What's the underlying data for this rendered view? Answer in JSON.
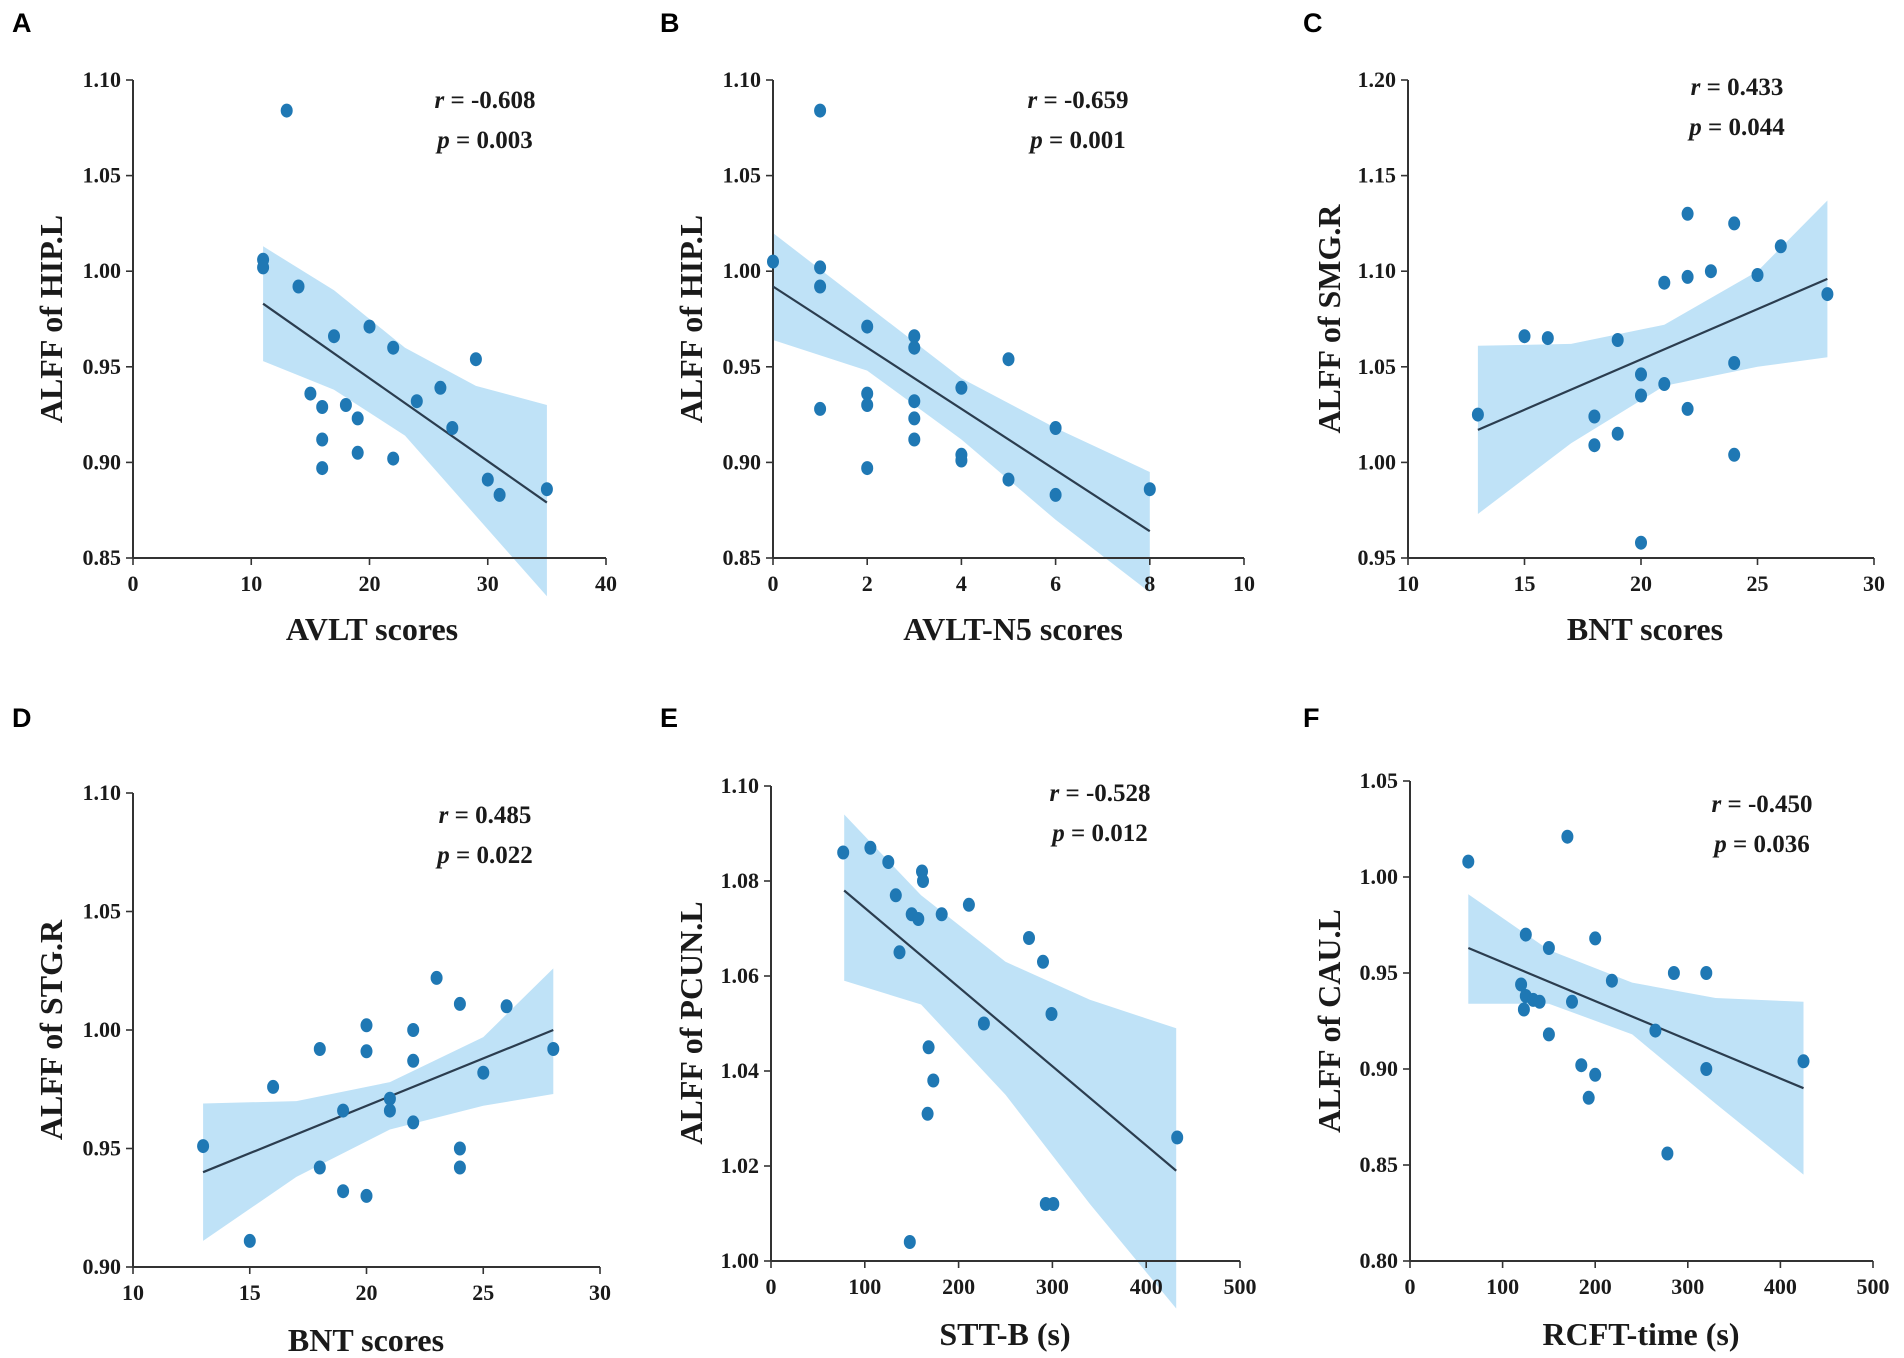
{
  "chart_data": [
    {
      "panel": "A",
      "type": "scatter",
      "xlabel": "AVLT scores",
      "ylabel": "ALFF of HIP.L",
      "xlim": [
        0,
        40
      ],
      "ylim": [
        0.85,
        1.1
      ],
      "xticks": [
        0,
        10,
        20,
        30,
        40
      ],
      "xtick_labels": [
        "0",
        "10",
        "20",
        "30",
        "40"
      ],
      "yticks": [
        0.85,
        0.9,
        0.95,
        1.0,
        1.05,
        1.1
      ],
      "ytick_labels": [
        "0.85",
        "0.90",
        "0.95",
        "1.00",
        "1.05",
        "1.10"
      ],
      "r_label": "r",
      "r_value": "= -0.608",
      "p_label": "p",
      "p_value": "= 0.003",
      "fit": {
        "x0": 11,
        "y0": 0.983,
        "x1": 35,
        "y1": 0.879
      },
      "ci_upper": [
        [
          11,
          1.013
        ],
        [
          17,
          0.99
        ],
        [
          23,
          0.96
        ],
        [
          29,
          0.94
        ],
        [
          35,
          0.93
        ]
      ],
      "ci_lower": [
        [
          35,
          0.83
        ],
        [
          29,
          0.872
        ],
        [
          23,
          0.914
        ],
        [
          17,
          0.938
        ],
        [
          11,
          0.953
        ]
      ],
      "points": [
        [
          13,
          1.084
        ],
        [
          11,
          1.006
        ],
        [
          11,
          1.002
        ],
        [
          14,
          0.992
        ],
        [
          17,
          0.966
        ],
        [
          20,
          0.971
        ],
        [
          22,
          0.96
        ],
        [
          15,
          0.936
        ],
        [
          16,
          0.929
        ],
        [
          18,
          0.93
        ],
        [
          19,
          0.923
        ],
        [
          16,
          0.912
        ],
        [
          16,
          0.897
        ],
        [
          19,
          0.905
        ],
        [
          22,
          0.902
        ],
        [
          24,
          0.932
        ],
        [
          26,
          0.939
        ],
        [
          27,
          0.918
        ],
        [
          29,
          0.954
        ],
        [
          30,
          0.891
        ],
        [
          31,
          0.883
        ],
        [
          35,
          0.886
        ]
      ]
    },
    {
      "panel": "B",
      "type": "scatter",
      "xlabel": "AVLT-N5 scores",
      "ylabel": "ALFF of HIP.L",
      "xlim": [
        0,
        10
      ],
      "ylim": [
        0.85,
        1.1
      ],
      "xticks": [
        0,
        2,
        4,
        6,
        8,
        10
      ],
      "xtick_labels": [
        "0",
        "2",
        "4",
        "6",
        "8",
        "10"
      ],
      "yticks": [
        0.85,
        0.9,
        0.95,
        1.0,
        1.05,
        1.1
      ],
      "ytick_labels": [
        "0.85",
        "0.90",
        "0.95",
        "1.00",
        "1.05",
        "1.10"
      ],
      "r_label": "r",
      "r_value": "= -0.659",
      "p_label": "p",
      "p_value": "= 0.001",
      "fit": {
        "x0": 0,
        "y0": 0.992,
        "x1": 8,
        "y1": 0.864
      },
      "ci_upper": [
        [
          0,
          1.02
        ],
        [
          2,
          0.982
        ],
        [
          4,
          0.944
        ],
        [
          6,
          0.918
        ],
        [
          8,
          0.895
        ]
      ],
      "ci_lower": [
        [
          8,
          0.832
        ],
        [
          6,
          0.87
        ],
        [
          4,
          0.912
        ],
        [
          2,
          0.948
        ],
        [
          0,
          0.964
        ]
      ],
      "points": [
        [
          1,
          1.084
        ],
        [
          0,
          1.005
        ],
        [
          1,
          1.002
        ],
        [
          1,
          0.992
        ],
        [
          2,
          0.971
        ],
        [
          3,
          0.966
        ],
        [
          3,
          0.96
        ],
        [
          2,
          0.936
        ],
        [
          2,
          0.93
        ],
        [
          1,
          0.928
        ],
        [
          3,
          0.932
        ],
        [
          3,
          0.923
        ],
        [
          3,
          0.912
        ],
        [
          2,
          0.897
        ],
        [
          4,
          0.939
        ],
        [
          4,
          0.904
        ],
        [
          4,
          0.901
        ],
        [
          5,
          0.954
        ],
        [
          5,
          0.891
        ],
        [
          6,
          0.918
        ],
        [
          6,
          0.883
        ],
        [
          8,
          0.886
        ]
      ]
    },
    {
      "panel": "C",
      "type": "scatter",
      "xlabel": "BNT scores",
      "ylabel": "ALFF of SMG.R",
      "xlim": [
        10,
        30
      ],
      "ylim": [
        0.95,
        1.2
      ],
      "xticks": [
        10,
        15,
        20,
        25,
        30
      ],
      "xtick_labels": [
        "10",
        "15",
        "20",
        "25",
        "30"
      ],
      "yticks": [
        0.95,
        1.0,
        1.05,
        1.1,
        1.15,
        1.2
      ],
      "ytick_labels": [
        "0.95",
        "1.00",
        "1.05",
        "1.10",
        "1.15",
        "1.20"
      ],
      "r_label": "r",
      "r_value": "= 0.433",
      "p_label": "p",
      "p_value": "= 0.044",
      "fit": {
        "x0": 13,
        "y0": 1.017,
        "x1": 28,
        "y1": 1.096
      },
      "ci_upper": [
        [
          13,
          1.061
        ],
        [
          17,
          1.062
        ],
        [
          21,
          1.072
        ],
        [
          25,
          1.1
        ],
        [
          28,
          1.137
        ]
      ],
      "ci_lower": [
        [
          28,
          1.055
        ],
        [
          25,
          1.05
        ],
        [
          21,
          1.04
        ],
        [
          17,
          1.01
        ],
        [
          13,
          0.973
        ]
      ],
      "points": [
        [
          13,
          1.025
        ],
        [
          15,
          1.066
        ],
        [
          16,
          1.065
        ],
        [
          18,
          1.024
        ],
        [
          18,
          1.009
        ],
        [
          19,
          1.064
        ],
        [
          19,
          1.015
        ],
        [
          20,
          1.046
        ],
        [
          20,
          1.035
        ],
        [
          20,
          0.958
        ],
        [
          21,
          1.094
        ],
        [
          21,
          1.041
        ],
        [
          22,
          1.13
        ],
        [
          22,
          1.097
        ],
        [
          22,
          1.028
        ],
        [
          23,
          1.1
        ],
        [
          24,
          1.125
        ],
        [
          24,
          1.052
        ],
        [
          24,
          1.004
        ],
        [
          25,
          1.098
        ],
        [
          26,
          1.113
        ],
        [
          28,
          1.088
        ]
      ]
    },
    {
      "panel": "D",
      "type": "scatter",
      "xlabel": "BNT scores",
      "ylabel": "ALFF of STG.R",
      "xlim": [
        10,
        30
      ],
      "ylim": [
        0.9,
        1.1
      ],
      "xticks": [
        10,
        15,
        20,
        25,
        30
      ],
      "xtick_labels": [
        "10",
        "15",
        "20",
        "25",
        "30"
      ],
      "yticks": [
        0.9,
        0.95,
        1.0,
        1.05,
        1.1
      ],
      "ytick_labels": [
        "0.90",
        "0.95",
        "1.00",
        "1.05",
        "1.10"
      ],
      "r_label": "r",
      "r_value": "= 0.485",
      "p_label": "p",
      "p_value": "= 0.022",
      "fit": {
        "x0": 13,
        "y0": 0.94,
        "x1": 28,
        "y1": 1.0
      },
      "ci_upper": [
        [
          13,
          0.969
        ],
        [
          17,
          0.97
        ],
        [
          21,
          0.978
        ],
        [
          25,
          0.997
        ],
        [
          28,
          1.026
        ]
      ],
      "ci_lower": [
        [
          28,
          0.973
        ],
        [
          25,
          0.968
        ],
        [
          21,
          0.958
        ],
        [
          17,
          0.938
        ],
        [
          13,
          0.911
        ]
      ],
      "points": [
        [
          13,
          0.951
        ],
        [
          15,
          0.911
        ],
        [
          16,
          0.976
        ],
        [
          18,
          0.992
        ],
        [
          18,
          0.942
        ],
        [
          19,
          0.966
        ],
        [
          19,
          0.932
        ],
        [
          20,
          1.002
        ],
        [
          20,
          0.991
        ],
        [
          20,
          0.93
        ],
        [
          21,
          0.971
        ],
        [
          21,
          0.966
        ],
        [
          22,
          1.0
        ],
        [
          22,
          0.987
        ],
        [
          22,
          0.961
        ],
        [
          23,
          1.022
        ],
        [
          24,
          1.011
        ],
        [
          24,
          0.95
        ],
        [
          24,
          0.942
        ],
        [
          25,
          0.982
        ],
        [
          26,
          1.01
        ],
        [
          28,
          0.992
        ]
      ]
    },
    {
      "panel": "E",
      "type": "scatter",
      "xlabel": "STT-B (s)",
      "ylabel": "ALFF of PCUN.L",
      "xlim": [
        0,
        500
      ],
      "ylim": [
        1.0,
        1.1
      ],
      "xticks": [
        0,
        100,
        200,
        300,
        400,
        500
      ],
      "xtick_labels": [
        "0",
        "100",
        "200",
        "300",
        "400",
        "500"
      ],
      "yticks": [
        1.0,
        1.02,
        1.04,
        1.06,
        1.08,
        1.1
      ],
      "ytick_labels": [
        "1.00",
        "1.02",
        "1.04",
        "1.06",
        "1.08",
        "1.10"
      ],
      "r_label": "r",
      "r_value": "= -0.528",
      "p_label": "p",
      "p_value": "= 0.012",
      "fit": {
        "x0": 78,
        "y0": 1.078,
        "x1": 432,
        "y1": 1.019
      },
      "ci_upper": [
        [
          78,
          1.094
        ],
        [
          160,
          1.077
        ],
        [
          250,
          1.063
        ],
        [
          340,
          1.055
        ],
        [
          432,
          1.049
        ]
      ],
      "ci_lower": [
        [
          432,
          0.99
        ],
        [
          340,
          1.012
        ],
        [
          250,
          1.035
        ],
        [
          160,
          1.054
        ],
        [
          78,
          1.059
        ]
      ],
      "points": [
        [
          77,
          1.086
        ],
        [
          106,
          1.087
        ],
        [
          125,
          1.084
        ],
        [
          133,
          1.077
        ],
        [
          150,
          1.073
        ],
        [
          161,
          1.082
        ],
        [
          162,
          1.08
        ],
        [
          157,
          1.072
        ],
        [
          182,
          1.073
        ],
        [
          211,
          1.075
        ],
        [
          137,
          1.065
        ],
        [
          168,
          1.045
        ],
        [
          173,
          1.038
        ],
        [
          167,
          1.031
        ],
        [
          148,
          1.004
        ],
        [
          227,
          1.05
        ],
        [
          275,
          1.068
        ],
        [
          290,
          1.063
        ],
        [
          299,
          1.052
        ],
        [
          293,
          1.012
        ],
        [
          301,
          1.012
        ],
        [
          433,
          1.026
        ]
      ]
    },
    {
      "panel": "F",
      "type": "scatter",
      "xlabel": "RCFT-time (s)",
      "ylabel": "ALFF of CAU.L",
      "xlim": [
        0,
        500
      ],
      "ylim": [
        0.8,
        1.05
      ],
      "xticks": [
        0,
        100,
        200,
        300,
        400,
        500
      ],
      "xtick_labels": [
        "0",
        "100",
        "200",
        "300",
        "400",
        "500"
      ],
      "yticks": [
        0.8,
        0.85,
        0.9,
        0.95,
        1.0,
        1.05
      ],
      "ytick_labels": [
        "0.80",
        "0.85",
        "0.90",
        "0.95",
        "1.00",
        "1.05"
      ],
      "r_label": "r",
      "r_value": "= -0.450",
      "p_label": "p",
      "p_value": "= 0.036",
      "fit": {
        "x0": 63,
        "y0": 0.963,
        "x1": 425,
        "y1": 0.89
      },
      "ci_upper": [
        [
          63,
          0.991
        ],
        [
          150,
          0.962
        ],
        [
          240,
          0.945
        ],
        [
          330,
          0.937
        ],
        [
          425,
          0.935
        ]
      ],
      "ci_lower": [
        [
          425,
          0.845
        ],
        [
          330,
          0.882
        ],
        [
          240,
          0.918
        ],
        [
          150,
          0.934
        ],
        [
          63,
          0.934
        ]
      ],
      "points": [
        [
          63,
          1.008
        ],
        [
          170,
          1.021
        ],
        [
          125,
          0.97
        ],
        [
          150,
          0.963
        ],
        [
          200,
          0.968
        ],
        [
          120,
          0.944
        ],
        [
          125,
          0.938
        ],
        [
          133,
          0.936
        ],
        [
          140,
          0.935
        ],
        [
          123,
          0.931
        ],
        [
          150,
          0.918
        ],
        [
          175,
          0.935
        ],
        [
          218,
          0.946
        ],
        [
          185,
          0.902
        ],
        [
          200,
          0.897
        ],
        [
          193,
          0.885
        ],
        [
          265,
          0.92
        ],
        [
          285,
          0.95
        ],
        [
          320,
          0.95
        ],
        [
          320,
          0.9
        ],
        [
          278,
          0.856
        ],
        [
          425,
          0.904
        ]
      ]
    }
  ]
}
